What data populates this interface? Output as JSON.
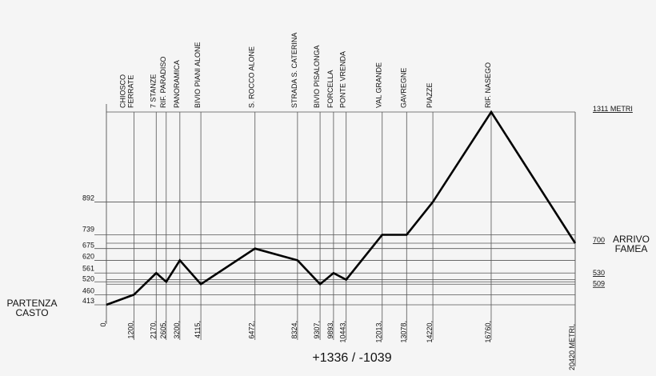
{
  "chart_data": {
    "type": "line",
    "xlabel": "",
    "ylabel": "",
    "x_unit_label": "METRI",
    "y_unit_label": "METRI",
    "xlim": [
      0,
      20420
    ],
    "ylim": [
      413,
      1311
    ],
    "grid": true,
    "summary": "+1336 / -1039",
    "start_label": [
      "PARTENZA",
      "CASTO"
    ],
    "end_label": [
      "ARRIVO",
      "FAMEA"
    ],
    "stations": [
      {
        "name": [
          "CHIOSCO",
          "FERRATE"
        ],
        "distance": 1200,
        "elevation": 460
      },
      {
        "name": [
          "7 STANZE"
        ],
        "distance": 2170,
        "elevation": 561
      },
      {
        "name": [
          "RIF. PARADISO"
        ],
        "distance": 2605,
        "elevation": 520
      },
      {
        "name": [
          "PANORAMICA"
        ],
        "distance": 3200,
        "elevation": 620
      },
      {
        "name": [
          "BIVIO PIANI ALONE"
        ],
        "distance": 4115,
        "elevation": 509
      },
      {
        "name": [
          "S. ROCCO ALONE"
        ],
        "distance": 6472,
        "elevation": 675
      },
      {
        "name": [
          "STRADA S. CATERINA"
        ],
        "distance": 8324,
        "elevation": 620
      },
      {
        "name": [
          "BIVIO PISALONGA"
        ],
        "distance": 9307,
        "elevation": 509
      },
      {
        "name": [
          "FORCELLA"
        ],
        "distance": 9893,
        "elevation": 561
      },
      {
        "name": [
          "PONTE VRENDA"
        ],
        "distance": 10443,
        "elevation": 530
      },
      {
        "name": [
          "VAL GRANDE"
        ],
        "distance": 12013,
        "elevation": 739
      },
      {
        "name": [
          "GAVREGNE"
        ],
        "distance": 13078,
        "elevation": 739
      },
      {
        "name": [
          "PIAZZE"
        ],
        "distance": 14220,
        "elevation": 892
      },
      {
        "name": [
          "RIF. NASEGO"
        ],
        "distance": 16760,
        "elevation": 1311
      }
    ],
    "start": {
      "distance": 0,
      "elevation": 413
    },
    "end": {
      "distance": 20420,
      "elevation": 700
    },
    "x_tick_labels": [
      "0",
      "1200",
      "2170",
      "2605",
      "3200",
      "4115",
      "6472",
      "8324",
      "9307",
      "9893",
      "10443",
      "12013",
      "13078",
      "14220",
      "16760",
      "20420 METRI"
    ],
    "left_y_labels": [
      892,
      739,
      675,
      620,
      561,
      520,
      460,
      413
    ],
    "right_y_labels": [
      "1311 METRI",
      "700",
      "530",
      "509"
    ],
    "grid_elevations": [
      1311,
      892,
      739,
      700,
      675,
      620,
      561,
      530,
      520,
      509,
      460,
      413
    ],
    "line_color": "#000000",
    "grid_color": "#555555"
  }
}
